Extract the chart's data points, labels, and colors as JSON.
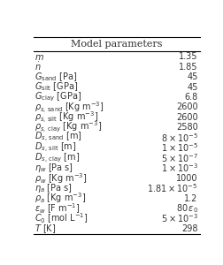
{
  "title": "Model parameters",
  "rows": [
    [
      "$\\dot{m}$",
      "1.35"
    ],
    [
      "$\\dot{n}$",
      "1.85"
    ],
    [
      "$G_\\mathrm{sand}$ [Pa]",
      "45"
    ],
    [
      "$G_\\mathrm{silt}$ [GPa]",
      "45"
    ],
    [
      "$G_\\mathrm{clay}$ [GPa]",
      "6.8"
    ],
    [
      "$\\rho_{s,\\,\\mathrm{sand}}$ [Kg m$^{-3}$]",
      "2600"
    ],
    [
      "$\\rho_{s,\\,\\mathrm{silt}}$ [Kg m$^{-3}$]",
      "2600"
    ],
    [
      "$\\rho_{s,\\,\\mathrm{clay}}$ [Kg m$^{-3}$]",
      "2580"
    ],
    [
      "$D_{s,\\,\\mathrm{sand}}$ [m]",
      "$8 \\times 10^{-5}$"
    ],
    [
      "$D_{s,\\,\\mathrm{silt}}$ [m]",
      "$1 \\times 10^{-5}$"
    ],
    [
      "$D_{s,\\,\\mathrm{clay}}$ [m]",
      "$5 \\times 10^{-7}$"
    ],
    [
      "$\\eta_w$ [Pa s]",
      "$1 \\times 10^{-3}$"
    ],
    [
      "$\\rho_w$ [Kg m$^{-3}$]",
      "1000"
    ],
    [
      "$\\eta_a$ [Pa s]",
      "$1.81 \\times 10^{-5}$"
    ],
    [
      "$\\rho_a$ [Kg m$^{-3}$]",
      "1.2"
    ],
    [
      "$\\epsilon_w$ [F m$^{-1}$]",
      "$80\\,\\epsilon_0$"
    ],
    [
      "$C_0$ [mol L$^{-1}$]",
      "$5 \\times 10^{-3}$"
    ],
    [
      "$T$ [K]",
      "298"
    ]
  ],
  "text_color": "#333333",
  "fontsize": 7.0,
  "title_fontsize": 8.0,
  "fig_width": 2.53,
  "fig_height": 3.0,
  "dpi": 100
}
